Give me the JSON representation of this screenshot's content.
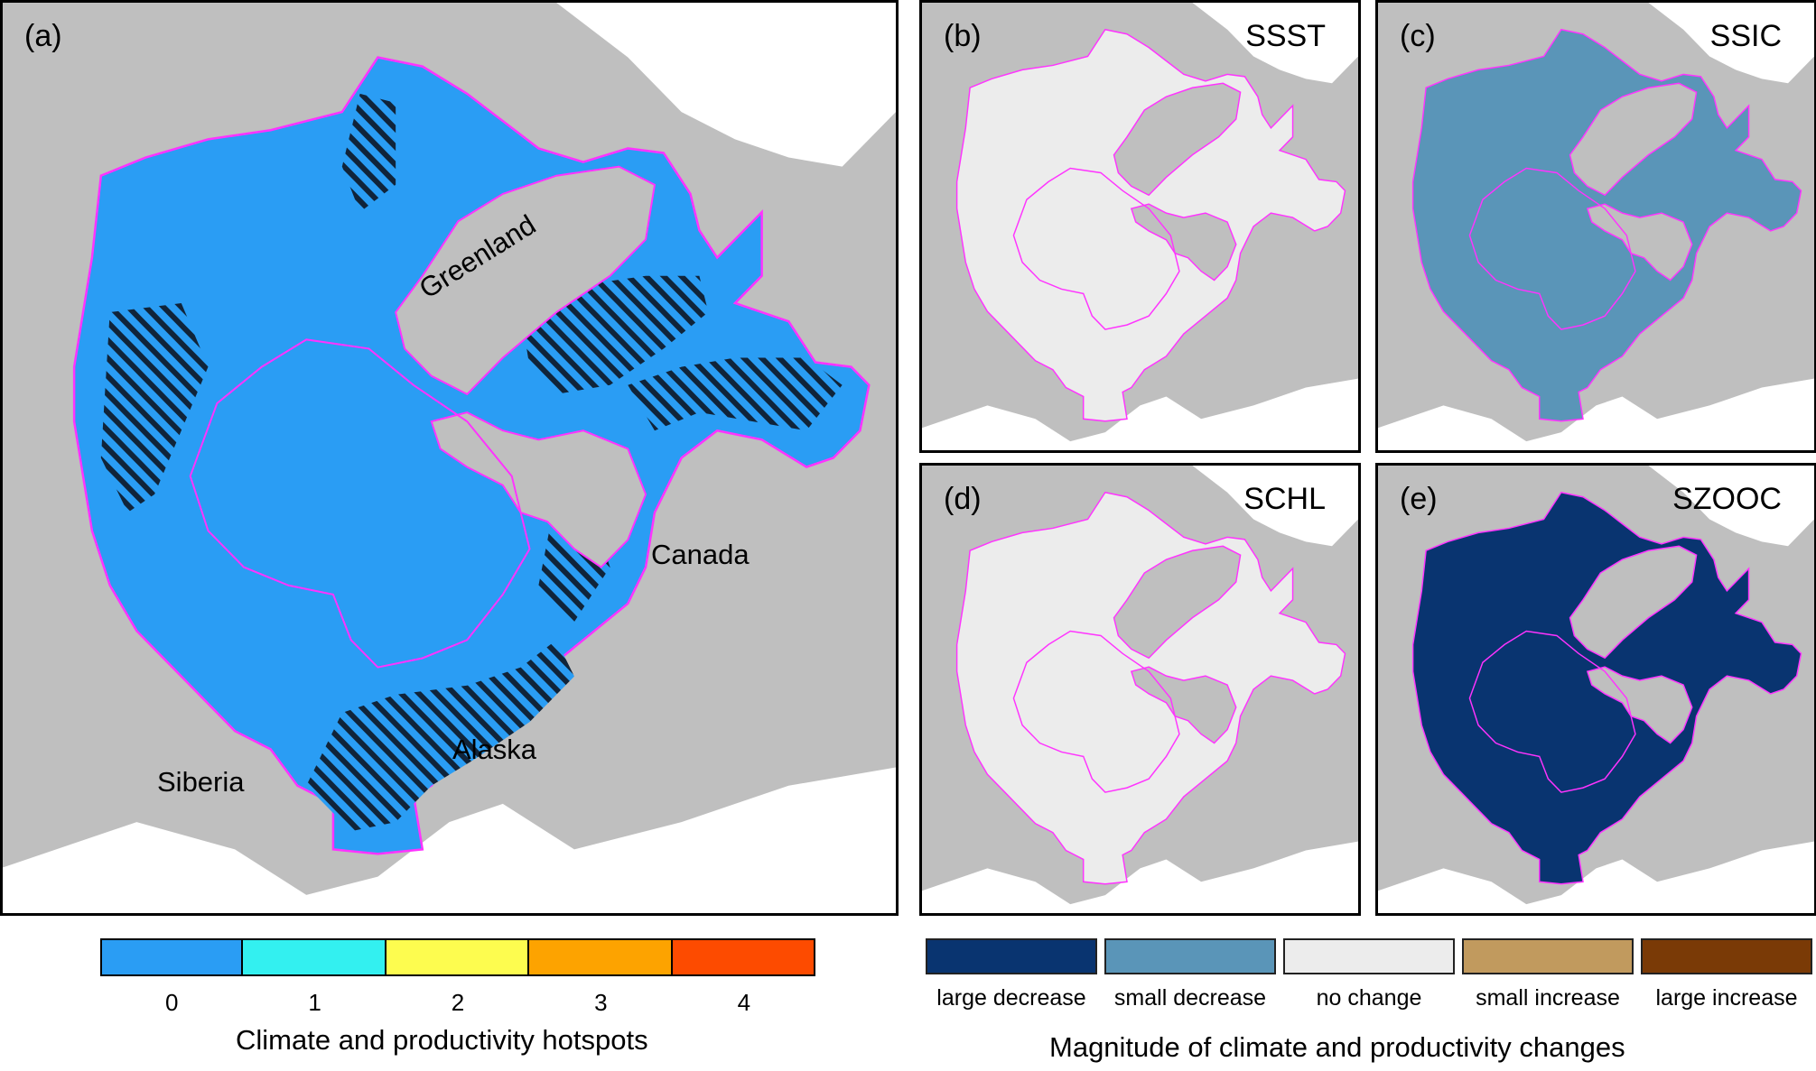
{
  "panel_a": {
    "label": "(a)",
    "regions": {
      "greenland": "Greenland",
      "canada": "Canada",
      "alaska": "Alaska",
      "siberia": "Siberia"
    }
  },
  "panels": [
    {
      "label": "(b)",
      "variable": "SSST",
      "fill_key": "no_change"
    },
    {
      "label": "(c)",
      "variable": "SSIC",
      "fill_key": "small_decrease"
    },
    {
      "label": "(d)",
      "variable": "SCHL",
      "fill_key": "no_change"
    },
    {
      "label": "(e)",
      "variable": "SZOOC",
      "fill_key": "large_decrease"
    }
  ],
  "hotspot_legend": {
    "title": "Climate and productivity hotspots",
    "classes": [
      {
        "label": "0",
        "color": "#2a9df4"
      },
      {
        "label": "1",
        "color": "#33f0f0"
      },
      {
        "label": "2",
        "color": "#fdfc4f"
      },
      {
        "label": "3",
        "color": "#fda300"
      },
      {
        "label": "4",
        "color": "#fd4b00"
      }
    ]
  },
  "magnitude_legend": {
    "title": "Magnitude of climate and productivity changes",
    "classes": [
      {
        "key": "large_decrease",
        "label": "large decrease",
        "color": "#093470"
      },
      {
        "key": "small_decrease",
        "label": "small decrease",
        "color": "#5a95b8"
      },
      {
        "key": "no_change",
        "label": "no change",
        "color": "#ececec"
      },
      {
        "key": "small_increase",
        "label": "small increase",
        "color": "#c19a5e"
      },
      {
        "key": "large_increase",
        "label": "large increase",
        "color": "#7a3a06"
      }
    ]
  },
  "colors": {
    "land": "#bfbfbf",
    "ice_white": "#ffffff",
    "boundary": "#ff33ff",
    "hatch": "#10243a"
  }
}
